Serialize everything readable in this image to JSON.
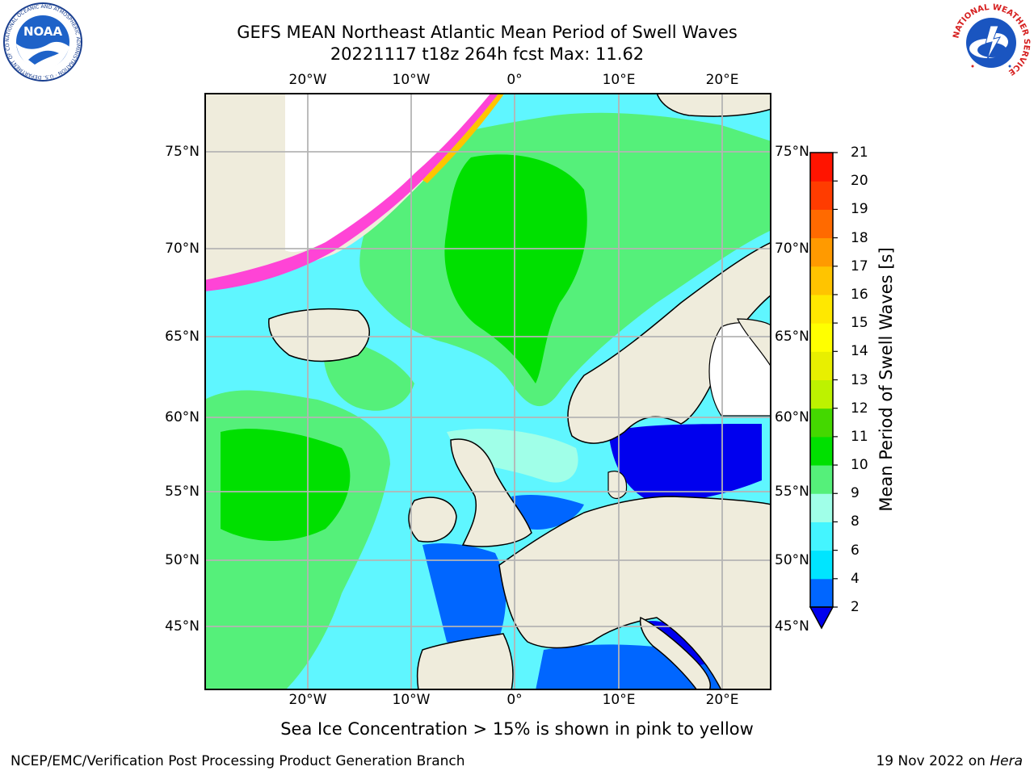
{
  "title": {
    "line1": "GEFS MEAN Northeast Atlantic Mean Period of Swell Waves",
    "line2": "20221117 t18z 264h fcst   Max: 11.62"
  },
  "logos": {
    "left": {
      "icon": "noaa-logo",
      "text": "NOAA",
      "ring_text": "NATIONAL OCEANIC AND ATMOSPHERIC ADMINISTRATION · U.S. DEPARTMENT OF COMMERCE"
    },
    "right": {
      "icon": "nws-logo",
      "ring_text": "NATIONAL WEATHER SERVICE"
    }
  },
  "map": {
    "longitude_labels": [
      {
        "value": -20,
        "label": "20°W"
      },
      {
        "value": -10,
        "label": "10°W"
      },
      {
        "value": 0,
        "label": "0°"
      },
      {
        "value": 10,
        "label": "10°E"
      },
      {
        "value": 20,
        "label": "20°E"
      }
    ],
    "latitude_labels": [
      {
        "value": 75,
        "label": "75°N"
      },
      {
        "value": 70,
        "label": "70°N"
      },
      {
        "value": 65,
        "label": "65°N"
      },
      {
        "value": 60,
        "label": "60°N"
      },
      {
        "value": 55,
        "label": "55°N"
      },
      {
        "value": 50,
        "label": "50°N"
      },
      {
        "value": 45,
        "label": "45°N"
      }
    ],
    "land_color": "#efecdc",
    "grid_color": "#b4b4b4"
  },
  "colorbar": {
    "label": "Mean Period of Swell Waves [s]",
    "ticks": [
      "2",
      "4",
      "6",
      "8",
      "9",
      "10",
      "11",
      "12",
      "13",
      "14",
      "15",
      "16",
      "17",
      "18",
      "19",
      "20",
      "21"
    ],
    "colors": [
      "#0066ff",
      "#00e5ff",
      "#44f5ff",
      "#a0ffe8",
      "#55f07a",
      "#00e000",
      "#44d800",
      "#bdf200",
      "#e8ef00",
      "#ffff00",
      "#ffe800",
      "#ffc400",
      "#ff9a00",
      "#ff6a00",
      "#ff3c00",
      "#ff1400"
    ],
    "under_color": "#0000ee"
  },
  "sea_ice_note": "Sea Ice Concentration > 15% is shown in pink to yellow",
  "footer": {
    "left": "NCEP/EMC/Verification Post Processing Product Generation Branch",
    "date": "19 Nov 2022 on",
    "host": "Hera"
  }
}
